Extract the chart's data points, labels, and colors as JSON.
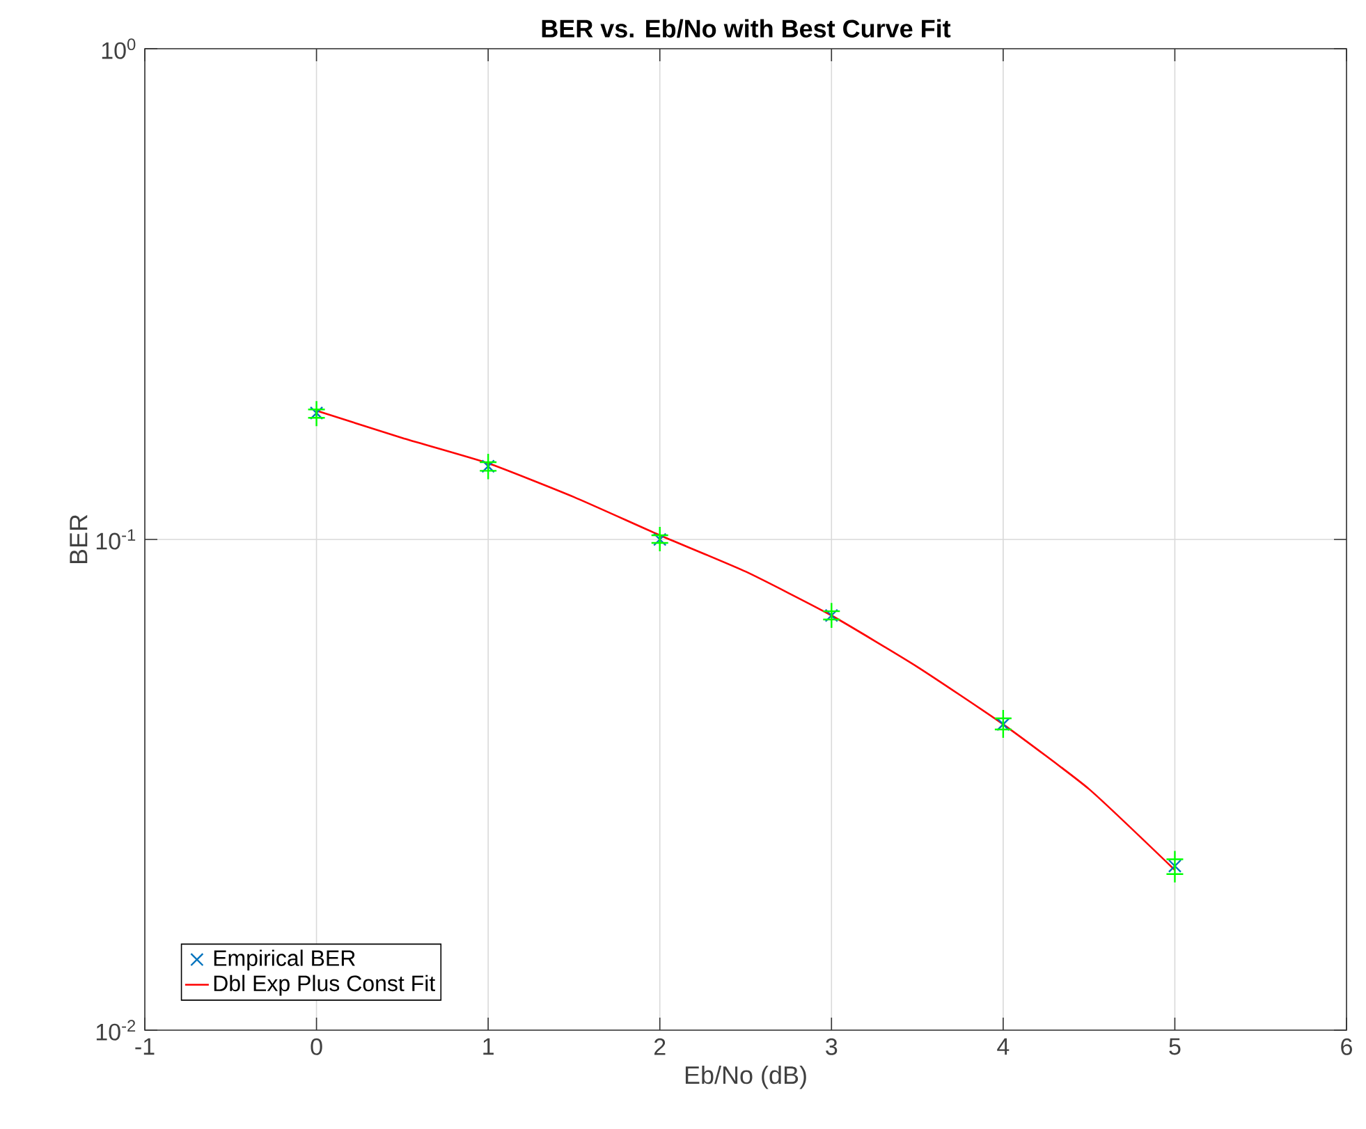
{
  "chart_data": {
    "type": "scatter",
    "title": "BER vs. Eb/No with Best Curve Fit",
    "xlabel": "Eb/No (dB)",
    "ylabel": "BER",
    "log": "y",
    "grid": true,
    "legend": "bottom left",
    "xlim": [
      -1,
      6
    ],
    "xticks": [
      -1,
      0,
      1,
      2,
      3,
      4,
      5,
      6
    ],
    "ylim": [
      0.01,
      1
    ],
    "yticks": [
      {
        "value": 0.01,
        "label": "10$^{-2}$"
      },
      {
        "value": 0.1,
        "label": "10$^{-1}$"
      },
      {
        "value": 1,
        "label": "10$^{0}$"
      }
    ],
    "series": [
      {
        "name": "Empirical BER",
        "marker": "cross",
        "color": "#0072bd",
        "x": [
          0,
          1,
          2,
          3,
          4,
          5
        ],
        "values": [
          0.181,
          0.141,
          0.1,
          0.07,
          0.042,
          0.0216
        ]
      },
      {
        "marker": "plus",
        "color": "#00ff00",
        "x": [
          0,
          1,
          2,
          3,
          4,
          5
        ],
        "values": [
          0.184,
          0.1437,
          0.102,
          0.0714,
          0.0432,
          0.0223
        ]
      },
      {
        "marker": "plus",
        "color": "#00ff00",
        "x": [
          0,
          1,
          2,
          3,
          4,
          5
        ],
        "values": [
          0.177,
          0.138,
          0.0984,
          0.0687,
          0.041,
          0.0208
        ]
      },
      {
        "name": "Dbl Exp Plus Const Fit",
        "type": "line",
        "marker": "none",
        "color": "#ff0000",
        "x": [
          0,
          0.5,
          1,
          1.5,
          2,
          2.5,
          3,
          3.5,
          4,
          4.5,
          5
        ],
        "values": [
          0.183,
          0.161,
          0.143,
          0.122,
          0.102,
          0.086,
          0.07,
          0.055,
          0.042,
          0.031,
          0.0212
        ]
      }
    ]
  }
}
